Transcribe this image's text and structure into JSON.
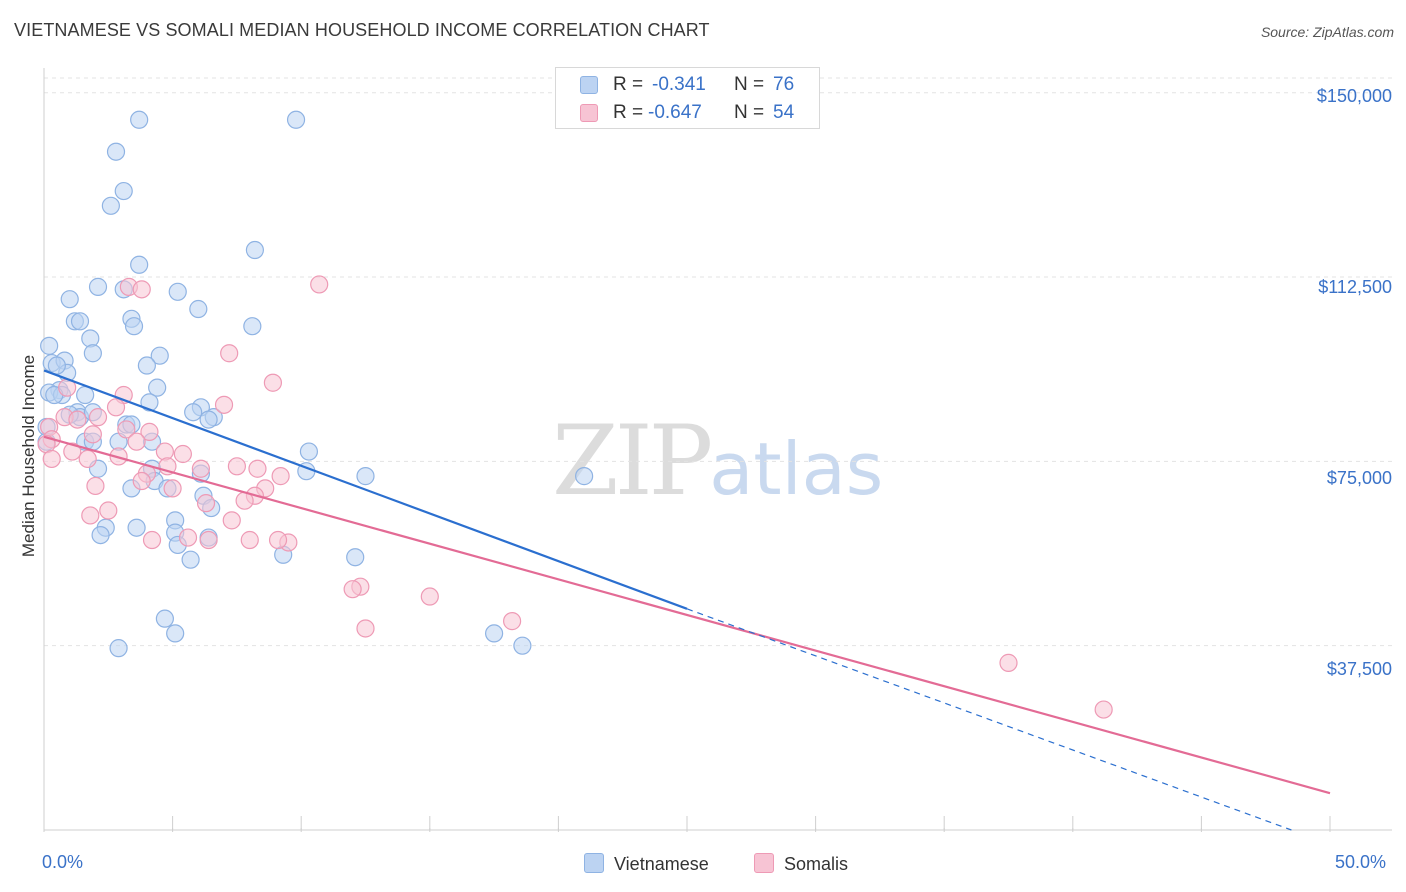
{
  "header": {
    "title": "VIETNAMESE VS SOMALI MEDIAN HOUSEHOLD INCOME CORRELATION CHART",
    "source": "Source: ZipAtlas.com"
  },
  "watermark": {
    "zip": "ZIP",
    "atlas": "atlas"
  },
  "colors": {
    "vietnamese_fill": "#bcd3f2",
    "vietnamese_stroke": "#8fb3e3",
    "vietnamese_line": "#2b6fcf",
    "somali_fill": "#f7c4d4",
    "somali_stroke": "#ee9ab5",
    "somali_line": "#e36b95",
    "tick_text": "#3a72c8"
  },
  "legend": {
    "rows": [
      {
        "r_label": "R =",
        "r_value": "-0.341",
        "n_label": "N =",
        "n_value": "76"
      },
      {
        "r_label": "R =",
        "r_value": "-0.647",
        "n_label": "N =",
        "n_value": "54"
      }
    ],
    "series": [
      "Vietnamese",
      "Somalis"
    ]
  },
  "chart_data": {
    "type": "scatter",
    "title": "VIETNAMESE VS SOMALI MEDIAN HOUSEHOLD INCOME CORRELATION CHART",
    "xlabel": "",
    "ylabel": "Median Household Income",
    "xlim": [
      0,
      50
    ],
    "ylim": [
      0,
      153000
    ],
    "x_tick_labels": [
      "0.0%",
      "50.0%"
    ],
    "y_ticks": [
      37500,
      75000,
      112500,
      150000
    ],
    "y_tick_labels": [
      "$37,500",
      "$75,000",
      "$112,500",
      "$150,000"
    ],
    "grid": true,
    "series": [
      {
        "name": "Vietnamese",
        "R": -0.341,
        "N": 76,
        "trend": {
          "x0": 0,
          "y0": 93500,
          "x1": 25,
          "y1": 45000,
          "dashed_to_x": 48.5,
          "dashed_to_y": 0
        },
        "points": [
          [
            3.7,
            144500
          ],
          [
            9.8,
            144500
          ],
          [
            2.8,
            138000
          ],
          [
            3.1,
            130000
          ],
          [
            2.6,
            127000
          ],
          [
            8.2,
            118000
          ],
          [
            3.7,
            115000
          ],
          [
            2.1,
            110500
          ],
          [
            3.1,
            110000
          ],
          [
            5.2,
            109500
          ],
          [
            1.0,
            108000
          ],
          [
            6.0,
            106000
          ],
          [
            3.4,
            104000
          ],
          [
            1.2,
            103500
          ],
          [
            1.4,
            103500
          ],
          [
            3.5,
            102500
          ],
          [
            8.1,
            102500
          ],
          [
            1.8,
            100000
          ],
          [
            0.2,
            98500
          ],
          [
            1.9,
            97000
          ],
          [
            4.5,
            96500
          ],
          [
            0.3,
            95000
          ],
          [
            0.8,
            95500
          ],
          [
            4.0,
            94500
          ],
          [
            0.9,
            93000
          ],
          [
            0.6,
            89500
          ],
          [
            0.2,
            89000
          ],
          [
            4.4,
            90000
          ],
          [
            1.6,
            88500
          ],
          [
            0.7,
            88500
          ],
          [
            4.1,
            87000
          ],
          [
            6.1,
            86000
          ],
          [
            1.3,
            85000
          ],
          [
            1.4,
            84000
          ],
          [
            1.9,
            85000
          ],
          [
            5.8,
            85000
          ],
          [
            6.6,
            84000
          ],
          [
            6.4,
            83500
          ],
          [
            0.1,
            82000
          ],
          [
            3.2,
            82500
          ],
          [
            3.4,
            82500
          ],
          [
            1.6,
            79000
          ],
          [
            1.9,
            79000
          ],
          [
            2.9,
            79000
          ],
          [
            4.2,
            79000
          ],
          [
            10.3,
            77000
          ],
          [
            2.1,
            73500
          ],
          [
            4.2,
            73500
          ],
          [
            6.1,
            72500
          ],
          [
            10.2,
            73000
          ],
          [
            12.5,
            72000
          ],
          [
            21.0,
            72000
          ],
          [
            4.3,
            71000
          ],
          [
            3.4,
            69500
          ],
          [
            4.8,
            69500
          ],
          [
            6.2,
            68000
          ],
          [
            5.1,
            63000
          ],
          [
            6.5,
            65500
          ],
          [
            3.6,
            61500
          ],
          [
            2.4,
            61500
          ],
          [
            2.2,
            60000
          ],
          [
            5.1,
            60500
          ],
          [
            6.4,
            59500
          ],
          [
            5.2,
            58000
          ],
          [
            9.3,
            56000
          ],
          [
            12.1,
            55500
          ],
          [
            5.7,
            55000
          ],
          [
            4.7,
            43000
          ],
          [
            5.1,
            40000
          ],
          [
            17.5,
            40000
          ],
          [
            18.6,
            37500
          ],
          [
            2.9,
            37000
          ],
          [
            0.1,
            79000
          ],
          [
            0.4,
            88500
          ],
          [
            1.0,
            84500
          ],
          [
            0.5,
            94500
          ]
        ]
      },
      {
        "name": "Somalis",
        "R": -0.647,
        "N": 54,
        "trend": {
          "x0": 0,
          "y0": 80000,
          "x1": 50,
          "y1": 7500
        },
        "points": [
          [
            10.7,
            111000
          ],
          [
            3.3,
            110500
          ],
          [
            3.8,
            110000
          ],
          [
            7.2,
            97000
          ],
          [
            8.9,
            91000
          ],
          [
            0.9,
            90000
          ],
          [
            3.1,
            88500
          ],
          [
            7.0,
            86500
          ],
          [
            2.8,
            86000
          ],
          [
            0.8,
            84000
          ],
          [
            2.1,
            84000
          ],
          [
            1.3,
            83500
          ],
          [
            0.2,
            82000
          ],
          [
            3.2,
            81500
          ],
          [
            4.1,
            81000
          ],
          [
            1.9,
            80500
          ],
          [
            0.3,
            79500
          ],
          [
            3.6,
            79000
          ],
          [
            0.1,
            78500
          ],
          [
            4.7,
            77000
          ],
          [
            5.4,
            76500
          ],
          [
            1.1,
            77000
          ],
          [
            2.9,
            76000
          ],
          [
            0.3,
            75500
          ],
          [
            1.7,
            75500
          ],
          [
            7.5,
            74000
          ],
          [
            8.3,
            73500
          ],
          [
            4.8,
            74000
          ],
          [
            6.1,
            73500
          ],
          [
            4.0,
            72500
          ],
          [
            9.2,
            72000
          ],
          [
            3.8,
            71000
          ],
          [
            2.0,
            70000
          ],
          [
            5.0,
            69500
          ],
          [
            8.6,
            69500
          ],
          [
            8.2,
            68000
          ],
          [
            7.8,
            67000
          ],
          [
            6.3,
            66500
          ],
          [
            2.5,
            65000
          ],
          [
            1.8,
            64000
          ],
          [
            7.3,
            63000
          ],
          [
            5.6,
            59500
          ],
          [
            6.4,
            59000
          ],
          [
            4.2,
            59000
          ],
          [
            8.0,
            59000
          ],
          [
            9.5,
            58500
          ],
          [
            9.1,
            59000
          ],
          [
            12.3,
            49500
          ],
          [
            12.0,
            49000
          ],
          [
            15.0,
            47500
          ],
          [
            18.2,
            42500
          ],
          [
            12.5,
            41000
          ],
          [
            37.5,
            34000
          ],
          [
            41.2,
            24500
          ]
        ]
      }
    ]
  }
}
